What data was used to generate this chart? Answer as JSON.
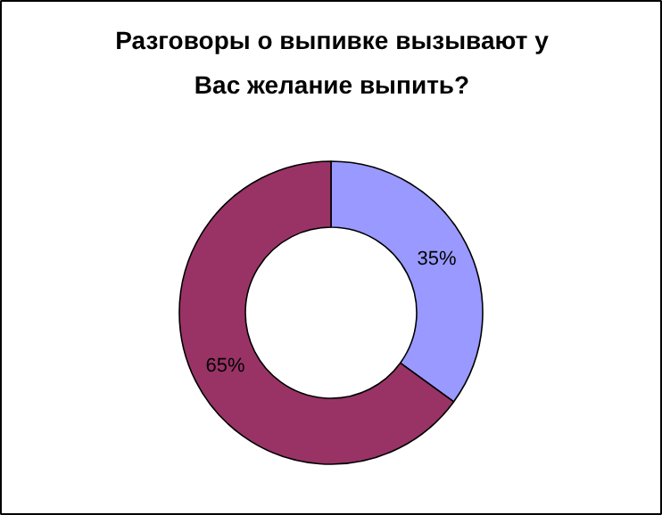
{
  "chart_data": {
    "type": "donut",
    "title": "Разговоры о выпивке вызывают у Вас желание выпить?",
    "categories": [
      null,
      null
    ],
    "values": [
      35,
      65
    ],
    "colors": [
      "#9999ff",
      "#993366"
    ],
    "value_labels": [
      "35%",
      "65%"
    ]
  }
}
